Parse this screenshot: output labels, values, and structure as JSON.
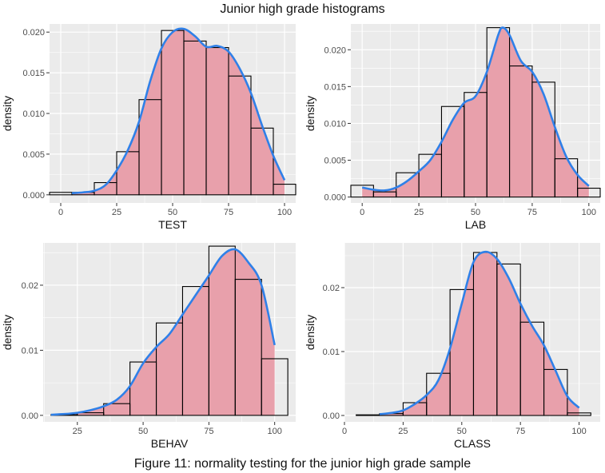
{
  "figure": {
    "title": "Junior high grade histograms",
    "caption": "Figure 11: normality testing for the junior high grade sample"
  },
  "colors": {
    "panel_bg": "#ebebeb",
    "grid": "#ffffff",
    "hist_fill": "#e8a0ab",
    "hist_edge": "#5a1a22",
    "outline_bins": "#000000",
    "density_line": "#2f80e8"
  },
  "chart_data": [
    {
      "type": "bar",
      "subtype": "histogram-with-density",
      "xlabel": "TEST",
      "ylabel": "density",
      "xlim": [
        -5,
        105
      ],
      "ylim": [
        -0.001,
        0.021
      ],
      "xticks": [
        0,
        25,
        50,
        75,
        100
      ],
      "yticks": [
        0.0,
        0.005,
        0.01,
        0.015,
        0.02
      ],
      "ytick_labels": [
        "0.000",
        "0.005",
        "0.010",
        "0.015",
        "0.020"
      ],
      "bin_centers": [
        0,
        10,
        20,
        30,
        40,
        50,
        60,
        70,
        80,
        90,
        100
      ],
      "bin_width": 10,
      "outline_values": [
        0.0003,
        0.0003,
        0.0015,
        0.0053,
        0.0117,
        0.0202,
        0.0189,
        0.0181,
        0.0146,
        0.0082,
        0.0013
      ],
      "density_curve": {
        "x": [
          5,
          10,
          15,
          20,
          25,
          30,
          35,
          40,
          45,
          50,
          55,
          60,
          65,
          70,
          75,
          80,
          85,
          90,
          95,
          100
        ],
        "y": [
          0.0002,
          0.0003,
          0.0005,
          0.0012,
          0.003,
          0.0055,
          0.009,
          0.014,
          0.018,
          0.02,
          0.0204,
          0.0195,
          0.0182,
          0.0183,
          0.0176,
          0.0155,
          0.0125,
          0.0085,
          0.0048,
          0.0018
        ]
      }
    },
    {
      "type": "bar",
      "subtype": "histogram-with-density",
      "xlabel": "LAB",
      "ylabel": "density",
      "xlim": [
        -5,
        105
      ],
      "ylim": [
        -0.0008,
        0.0235
      ],
      "xticks": [
        0,
        25,
        50,
        75,
        100
      ],
      "yticks": [
        0.0,
        0.005,
        0.01,
        0.015,
        0.02
      ],
      "ytick_labels": [
        "0.000",
        "0.005",
        "0.010",
        "0.015",
        "0.020"
      ],
      "bin_centers": [
        0,
        10,
        20,
        30,
        40,
        50,
        60,
        70,
        80,
        90,
        100
      ],
      "bin_width": 10,
      "outline_values": [
        0.0016,
        0.0007,
        0.0033,
        0.0058,
        0.0123,
        0.0142,
        0.023,
        0.0178,
        0.0156,
        0.0052,
        0.0012
      ],
      "density_curve": {
        "x": [
          0,
          5,
          10,
          15,
          20,
          25,
          30,
          35,
          40,
          45,
          50,
          55,
          60,
          62,
          65,
          70,
          75,
          80,
          85,
          90,
          95,
          100
        ],
        "y": [
          0.0013,
          0.001,
          0.0009,
          0.0013,
          0.0022,
          0.0035,
          0.005,
          0.0075,
          0.0105,
          0.0128,
          0.0137,
          0.017,
          0.022,
          0.023,
          0.022,
          0.0185,
          0.017,
          0.014,
          0.0095,
          0.0055,
          0.003,
          0.0015
        ]
      }
    },
    {
      "type": "bar",
      "subtype": "histogram-with-density",
      "xlabel": "BEHAV",
      "ylabel": "density",
      "xlim": [
        12,
        108
      ],
      "ylim": [
        -0.001,
        0.0265
      ],
      "xticks": [
        25,
        50,
        75,
        100
      ],
      "yticks": [
        0.0,
        0.01,
        0.02
      ],
      "ytick_labels": [
        "0.00",
        "0.01",
        "0.02"
      ],
      "bin_centers": [
        20,
        30,
        40,
        50,
        60,
        70,
        80,
        90,
        100
      ],
      "bin_width": 10,
      "outline_values": [
        0.0001,
        0.0004,
        0.0018,
        0.0082,
        0.0142,
        0.0198,
        0.026,
        0.0209,
        0.0087
      ],
      "density_curve": {
        "x": [
          15,
          20,
          25,
          30,
          35,
          40,
          45,
          50,
          55,
          60,
          65,
          70,
          75,
          80,
          85,
          90,
          95,
          100
        ],
        "y": [
          0.0001,
          0.0002,
          0.0004,
          0.0008,
          0.0014,
          0.0024,
          0.0045,
          0.008,
          0.0105,
          0.0125,
          0.0155,
          0.0185,
          0.0215,
          0.0245,
          0.0255,
          0.0235,
          0.02,
          0.0108
        ]
      }
    },
    {
      "type": "bar",
      "subtype": "histogram-with-density",
      "xlabel": "CLASS",
      "ylabel": "density",
      "xlim": [
        0,
        109
      ],
      "ylim": [
        -0.001,
        0.027
      ],
      "xticks": [
        0,
        25,
        50,
        75,
        100
      ],
      "yticks": [
        0.0,
        0.01,
        0.02
      ],
      "ytick_labels": [
        "0.00",
        "0.01",
        "0.02"
      ],
      "bin_centers": [
        10,
        20,
        30,
        40,
        50,
        60,
        70,
        80,
        90,
        100
      ],
      "bin_width": 10,
      "outline_values": [
        0.0001,
        0.0003,
        0.002,
        0.0066,
        0.0197,
        0.0255,
        0.0237,
        0.0146,
        0.0072,
        0.0004
      ],
      "density_curve": {
        "x": [
          15,
          20,
          25,
          30,
          35,
          40,
          45,
          50,
          55,
          60,
          65,
          70,
          75,
          80,
          85,
          90,
          95,
          100
        ],
        "y": [
          0.0002,
          0.0004,
          0.0008,
          0.0018,
          0.0032,
          0.0055,
          0.0105,
          0.0175,
          0.024,
          0.0256,
          0.0245,
          0.0215,
          0.0175,
          0.014,
          0.011,
          0.007,
          0.003,
          0.0012
        ]
      }
    }
  ]
}
